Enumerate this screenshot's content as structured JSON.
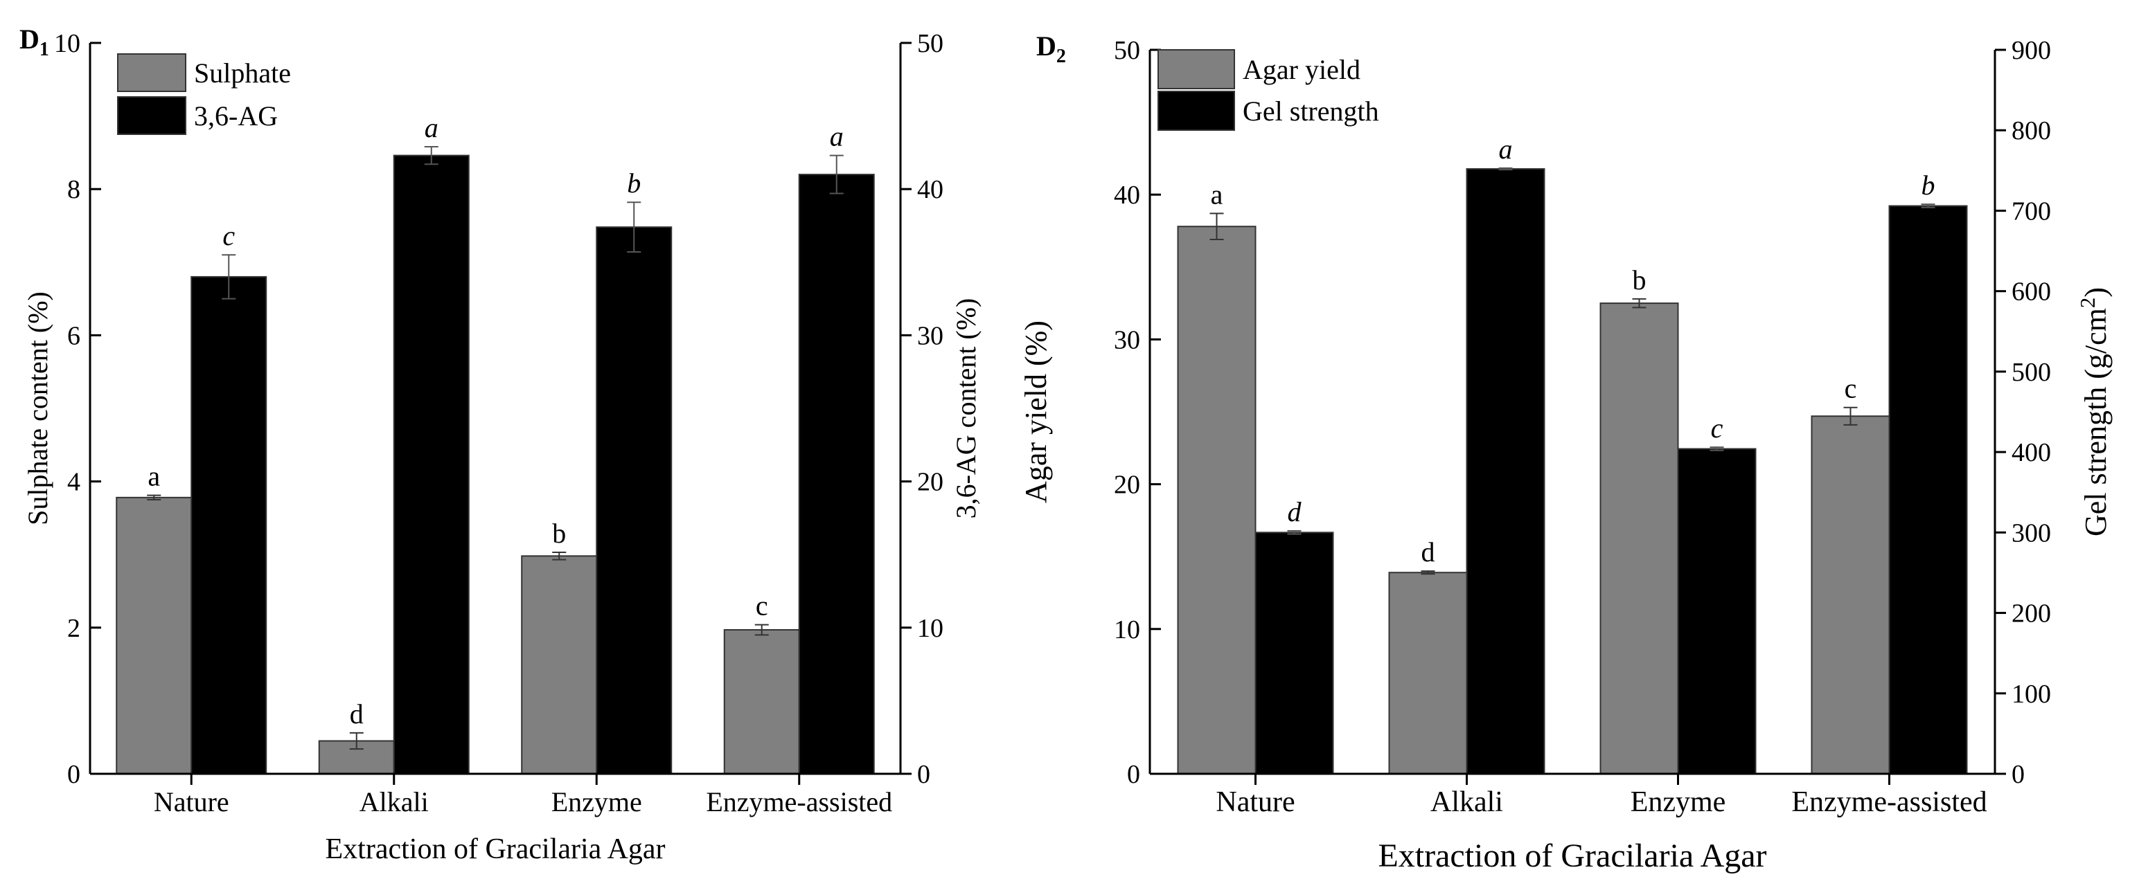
{
  "chart_data": [
    {
      "type": "bar",
      "panel_label": "D",
      "panel_sub": "1",
      "categories": [
        "Nature",
        "Alkali",
        "Enzyme",
        "Enzyme-assisted"
      ],
      "xlabel": "Extraction of Gracilaria Agar",
      "ylabel_left": "Sulphate content (%)",
      "ylabel_right": "3,6-AG content (%)",
      "ylim_left": [
        0,
        10
      ],
      "yticks_left": [
        0,
        2,
        4,
        6,
        8,
        10
      ],
      "ylim_right": [
        0,
        50
      ],
      "yticks_right": [
        0,
        10,
        20,
        30,
        40,
        50
      ],
      "legend_position": "top-left",
      "grid": false,
      "series": [
        {
          "name": "Sulphate",
          "axis": "left",
          "color": "#808080",
          "values": [
            3.78,
            0.45,
            2.98,
            1.97
          ],
          "errors": [
            0.03,
            0.11,
            0.05,
            0.07
          ],
          "letters": [
            "a",
            "d",
            "b",
            "c"
          ],
          "letter_style": "normal"
        },
        {
          "name": "3,6-AG",
          "axis": "right",
          "color": "#000000",
          "values": [
            34.0,
            42.3,
            37.4,
            41.0
          ],
          "errors": [
            1.5,
            0.6,
            1.7,
            1.3
          ],
          "letters": [
            "c",
            "a",
            "b",
            "a"
          ],
          "letter_style": "italic"
        }
      ]
    },
    {
      "type": "bar",
      "panel_label": "D",
      "panel_sub": "2",
      "categories": [
        "Nature",
        "Alkali",
        "Enzyme",
        "Enzyme-assisted"
      ],
      "xlabel": "Extraction of Gracilaria Agar",
      "ylabel_left": "Agar yield (%)",
      "ylabel_right": "Gel strength (g/cm",
      "ylabel_right_sup": "2",
      "ylabel_right_tail": ")",
      "ylim_left": [
        0,
        50
      ],
      "yticks_left": [
        0,
        10,
        20,
        30,
        40,
        50
      ],
      "ylim_right": [
        0,
        900
      ],
      "yticks_right": [
        0,
        100,
        200,
        300,
        400,
        500,
        600,
        700,
        800,
        900
      ],
      "legend_position": "top-left",
      "grid": false,
      "series": [
        {
          "name": "Agar yield",
          "axis": "left",
          "color": "#808080",
          "values": [
            37.8,
            13.9,
            32.5,
            24.7
          ],
          "errors": [
            0.9,
            0.1,
            0.3,
            0.6
          ],
          "letters": [
            "a",
            "d",
            "b",
            "c"
          ],
          "letter_style": "normal"
        },
        {
          "name": "Gel strength",
          "axis": "right",
          "color": "#000000",
          "values": [
            300,
            752,
            404,
            706
          ],
          "errors": [
            2,
            1,
            2,
            2
          ],
          "letters": [
            "d",
            "a",
            "c",
            "b"
          ],
          "letter_style": "italic"
        }
      ]
    }
  ]
}
